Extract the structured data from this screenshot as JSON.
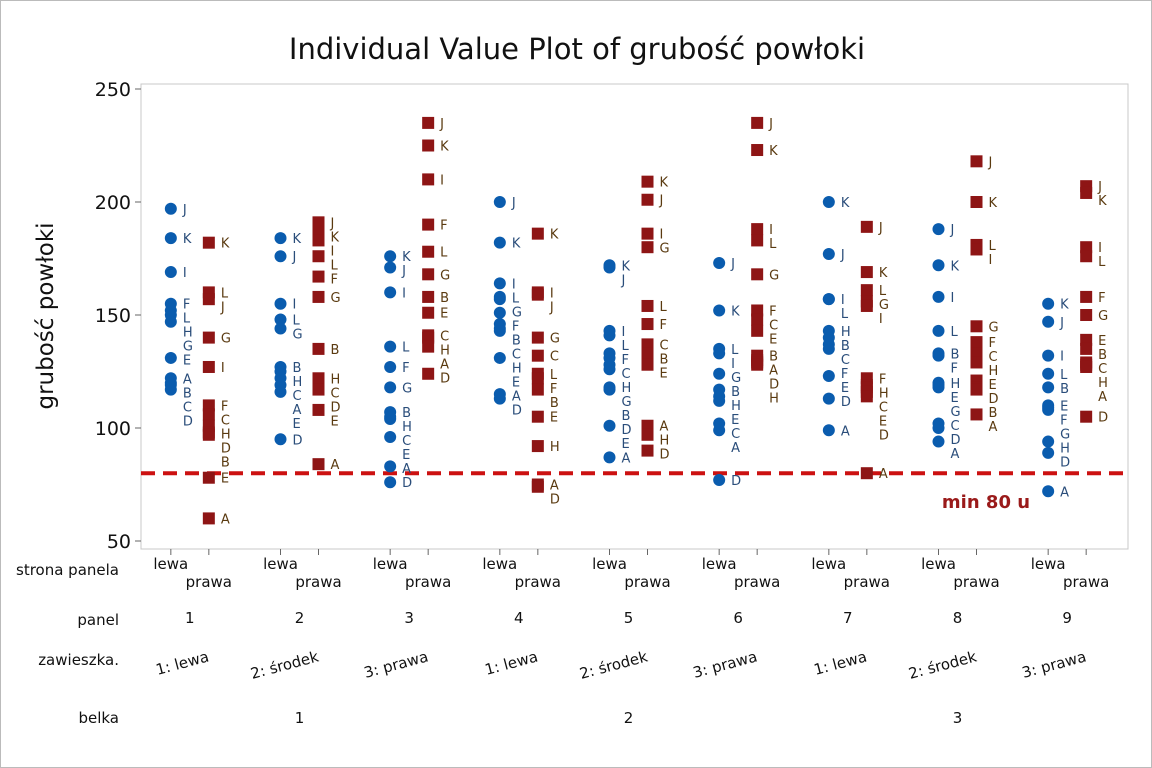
{
  "chart_data": {
    "type": "scatter",
    "title": "Individual Value Plot of grubość powłoki",
    "ylabel": "grubość powłoki",
    "ylim": [
      45,
      255
    ],
    "yticks": [
      50,
      100,
      150,
      200,
      250
    ],
    "reference_line": {
      "value": 80,
      "label": "min 80 u",
      "color": "#cc1111"
    },
    "colors": {
      "lewa": "#0a5cae",
      "prawa": "#8e1515"
    },
    "row_labels": {
      "strona": "strona panela",
      "panel": "panel",
      "zawieszka": "zawieszka.",
      "belka": "belka"
    },
    "side_labels": [
      "lewa",
      "prawa"
    ],
    "belka_labels": [
      "1",
      "2",
      "3"
    ],
    "groups": [
      {
        "panel": "1",
        "zawieszka": "1: lewa",
        "lewa": [
          [
            "J",
            197
          ],
          [
            "K",
            184
          ],
          [
            "I",
            169
          ],
          [
            "F",
            155
          ],
          [
            "L",
            152
          ],
          [
            "H",
            150
          ],
          [
            "G",
            147
          ],
          [
            "E",
            131
          ],
          [
            "A",
            122
          ],
          [
            "B",
            120
          ],
          [
            "C",
            119
          ],
          [
            "D",
            117
          ]
        ],
        "prawa": [
          [
            "K",
            182
          ],
          [
            "L",
            160
          ],
          [
            "J",
            157
          ],
          [
            "G",
            140
          ],
          [
            "I",
            127
          ],
          [
            "F",
            110
          ],
          [
            "C",
            106
          ],
          [
            "H",
            101
          ],
          [
            "D",
            98
          ],
          [
            "B",
            97
          ],
          [
            "E",
            78
          ],
          [
            "A",
            60
          ]
        ]
      },
      {
        "panel": "2",
        "zawieszka": "2: środek",
        "lewa": [
          [
            "K",
            184
          ],
          [
            "J",
            176
          ],
          [
            "I",
            155
          ],
          [
            "L",
            148
          ],
          [
            "G",
            144
          ],
          [
            "B",
            127
          ],
          [
            "H",
            125
          ],
          [
            "C",
            122
          ],
          [
            "A",
            119
          ],
          [
            "E",
            116
          ],
          [
            "D",
            95
          ]
        ],
        "prawa": [
          [
            "J",
            191
          ],
          [
            "K",
            188
          ],
          [
            "I",
            183
          ],
          [
            "L",
            176
          ],
          [
            "F",
            167
          ],
          [
            "G",
            158
          ],
          [
            "B",
            135
          ],
          [
            "H",
            122
          ],
          [
            "C",
            121
          ],
          [
            "D",
            117
          ],
          [
            "E",
            108
          ],
          [
            "A",
            84
          ]
        ]
      },
      {
        "panel": "3",
        "zawieszka": "3: prawa",
        "lewa": [
          [
            "K",
            176
          ],
          [
            "J",
            171
          ],
          [
            "I",
            160
          ],
          [
            "L",
            136
          ],
          [
            "F",
            127
          ],
          [
            "G",
            118
          ],
          [
            "B",
            107
          ],
          [
            "H",
            105
          ],
          [
            "C",
            104
          ],
          [
            "E",
            96
          ],
          [
            "A",
            83
          ],
          [
            "D",
            76
          ]
        ],
        "prawa": [
          [
            "J",
            235
          ],
          [
            "K",
            225
          ],
          [
            "I",
            210
          ],
          [
            "F",
            190
          ],
          [
            "L",
            178
          ],
          [
            "G",
            168
          ],
          [
            "B",
            158
          ],
          [
            "E",
            151
          ],
          [
            "C",
            141
          ],
          [
            "H",
            140
          ],
          [
            "A",
            136
          ],
          [
            "D",
            124
          ]
        ]
      },
      {
        "panel": "4",
        "zawieszka": "1: lewa",
        "lewa": [
          [
            "J",
            200
          ],
          [
            "K",
            182
          ],
          [
            "I",
            164
          ],
          [
            "L",
            158
          ],
          [
            "G",
            157
          ],
          [
            "F",
            151
          ],
          [
            "B",
            146
          ],
          [
            "C",
            144
          ],
          [
            "H",
            143
          ],
          [
            "E",
            131
          ],
          [
            "A",
            115
          ],
          [
            "D",
            113
          ]
        ],
        "prawa": [
          [
            "K",
            186
          ],
          [
            "I",
            160
          ],
          [
            "J",
            159
          ],
          [
            "G",
            140
          ],
          [
            "C",
            132
          ],
          [
            "L",
            124
          ],
          [
            "F",
            122
          ],
          [
            "B",
            117
          ],
          [
            "E",
            105
          ],
          [
            "H",
            92
          ],
          [
            "A",
            75
          ],
          [
            "D",
            74
          ]
        ]
      },
      {
        "panel": "5",
        "zawieszka": "2: środek",
        "lewa": [
          [
            "K",
            172
          ],
          [
            "J",
            171
          ],
          [
            "I",
            143
          ],
          [
            "L",
            141
          ],
          [
            "F",
            133
          ],
          [
            "C",
            131
          ],
          [
            "H",
            128
          ],
          [
            "G",
            126
          ],
          [
            "B",
            118
          ],
          [
            "D",
            117
          ],
          [
            "E",
            101
          ],
          [
            "A",
            87
          ]
        ],
        "prawa": [
          [
            "K",
            209
          ],
          [
            "J",
            201
          ],
          [
            "I",
            186
          ],
          [
            "G",
            180
          ],
          [
            "L",
            154
          ],
          [
            "F",
            146
          ],
          [
            "C",
            137
          ],
          [
            "B",
            133
          ],
          [
            "E",
            128
          ],
          [
            "A",
            101
          ],
          [
            "H",
            97
          ],
          [
            "D",
            90
          ]
        ]
      },
      {
        "panel": "6",
        "zawieszka": "3: prawa",
        "lewa": [
          [
            "J",
            173
          ],
          [
            "K",
            152
          ],
          [
            "L",
            135
          ],
          [
            "I",
            133
          ],
          [
            "G",
            124
          ],
          [
            "B",
            117
          ],
          [
            "H",
            114
          ],
          [
            "E",
            112
          ],
          [
            "C",
            102
          ],
          [
            "A",
            99
          ],
          [
            "D",
            77
          ]
        ],
        "prawa": [
          [
            "J",
            235
          ],
          [
            "K",
            223
          ],
          [
            "I",
            188
          ],
          [
            "L",
            183
          ],
          [
            "G",
            168
          ],
          [
            "F",
            152
          ],
          [
            "C",
            148
          ],
          [
            "E",
            143
          ],
          [
            "B",
            132
          ],
          [
            "A",
            130
          ],
          [
            "D",
            129
          ],
          [
            "H",
            128
          ]
        ]
      },
      {
        "panel": "7",
        "zawieszka": "1: lewa",
        "lewa": [
          [
            "K",
            200
          ],
          [
            "J",
            177
          ],
          [
            "I",
            157
          ],
          [
            "L",
            157
          ],
          [
            "H",
            143
          ],
          [
            "B",
            140
          ],
          [
            "C",
            137
          ],
          [
            "F",
            135
          ],
          [
            "E",
            123
          ],
          [
            "D",
            113
          ],
          [
            "A",
            99
          ]
        ],
        "prawa": [
          [
            "J",
            189
          ],
          [
            "K",
            169
          ],
          [
            "L",
            161
          ],
          [
            "G",
            156
          ],
          [
            "I",
            154
          ],
          [
            "F",
            122
          ],
          [
            "H",
            119
          ],
          [
            "C",
            118
          ],
          [
            "E",
            116
          ],
          [
            "D",
            114
          ],
          [
            "A",
            80
          ]
        ]
      },
      {
        "panel": "8",
        "zawieszka": "2: środek",
        "lewa": [
          [
            "J",
            188
          ],
          [
            "K",
            172
          ],
          [
            "I",
            158
          ],
          [
            "L",
            143
          ],
          [
            "B",
            133
          ],
          [
            "F",
            132
          ],
          [
            "H",
            120
          ],
          [
            "E",
            119
          ],
          [
            "G",
            118
          ],
          [
            "C",
            102
          ],
          [
            "D",
            100
          ],
          [
            "A",
            94
          ]
        ],
        "prawa": [
          [
            "J",
            218
          ],
          [
            "K",
            200
          ],
          [
            "L",
            181
          ],
          [
            "I",
            179
          ],
          [
            "G",
            145
          ],
          [
            "F",
            138
          ],
          [
            "C",
            133
          ],
          [
            "H",
            129
          ],
          [
            "E",
            121
          ],
          [
            "D",
            118
          ],
          [
            "B",
            117
          ],
          [
            "A",
            106
          ]
        ]
      },
      {
        "panel": "9",
        "zawieszka": "3: prawa",
        "lewa": [
          [
            "K",
            155
          ],
          [
            "J",
            147
          ],
          [
            "I",
            132
          ],
          [
            "L",
            124
          ],
          [
            "B",
            118
          ],
          [
            "E",
            110
          ],
          [
            "F",
            109
          ],
          [
            "G",
            108
          ],
          [
            "H",
            94
          ],
          [
            "D",
            89
          ],
          [
            "A",
            72
          ]
        ],
        "prawa": [
          [
            "J",
            207
          ],
          [
            "K",
            204
          ],
          [
            "I",
            180
          ],
          [
            "L",
            176
          ],
          [
            "F",
            158
          ],
          [
            "G",
            150
          ],
          [
            "E",
            139
          ],
          [
            "B",
            135
          ],
          [
            "C",
            129
          ],
          [
            "H",
            128
          ],
          [
            "A",
            127
          ],
          [
            "D",
            105
          ]
        ]
      }
    ]
  }
}
